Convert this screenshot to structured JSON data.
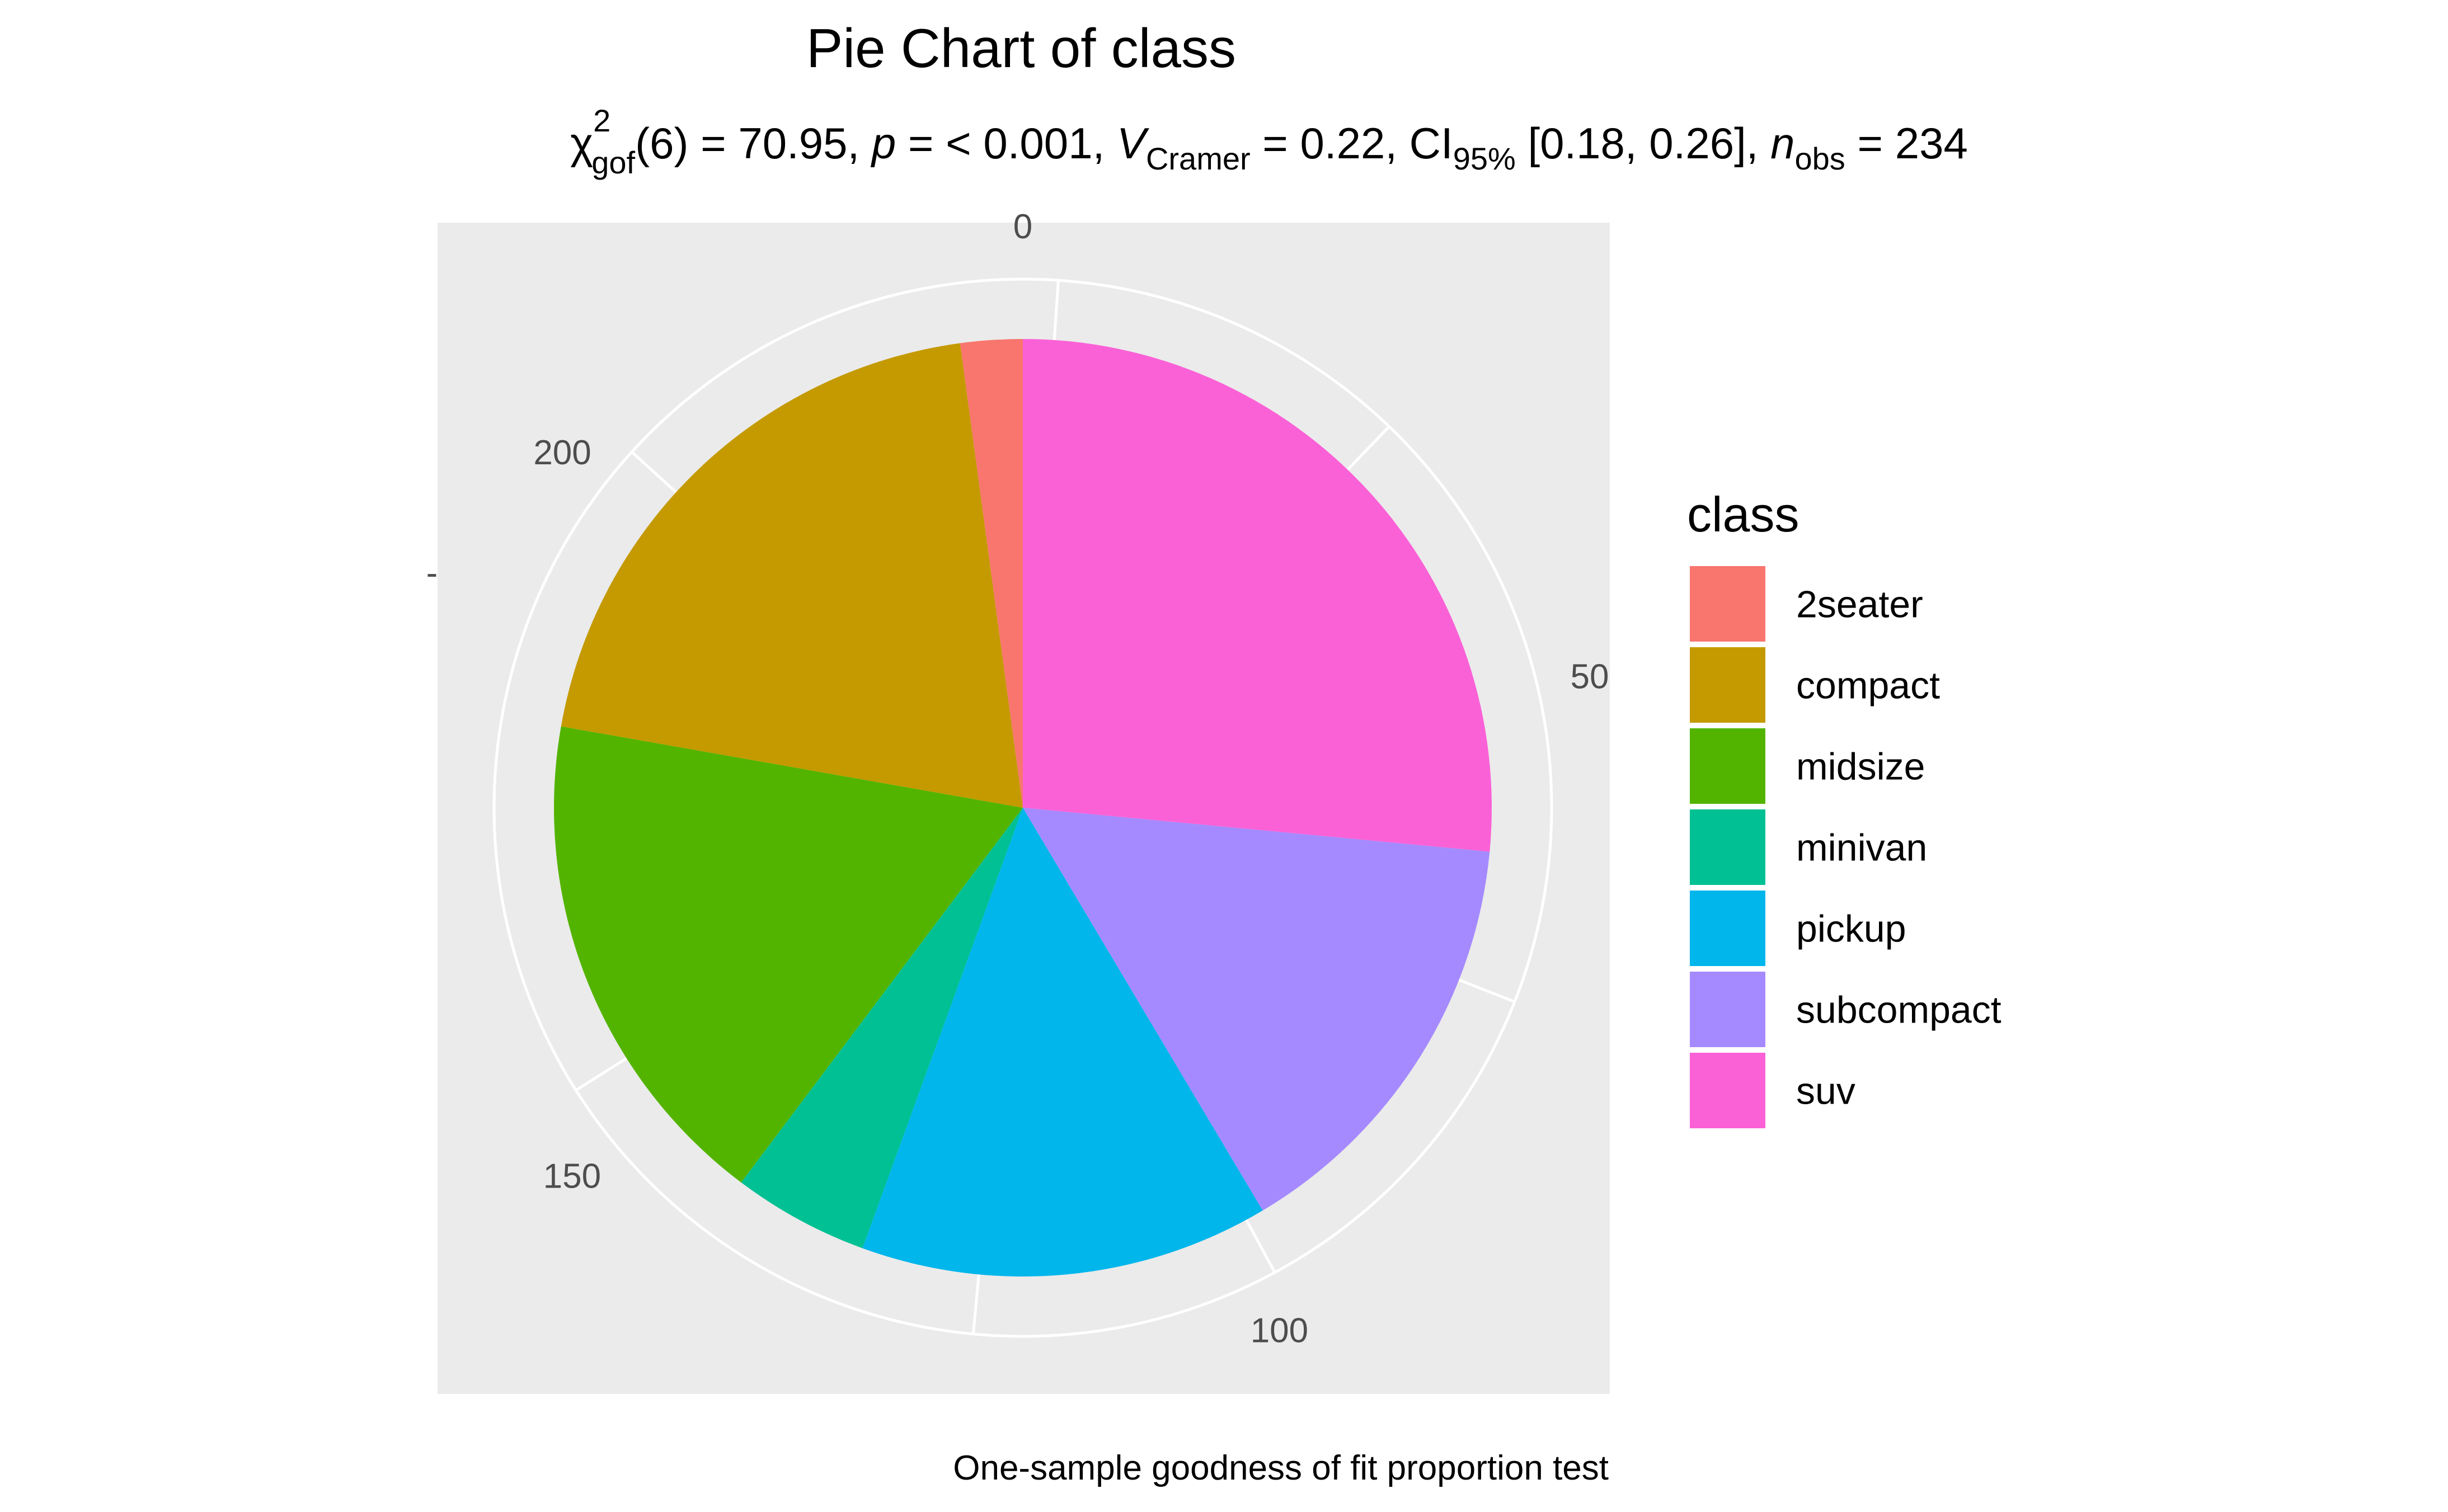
{
  "chart_data": {
    "type": "pie",
    "title": "Pie Chart of class",
    "subtitle": {
      "chi_sym": "χ",
      "chi_sub": "gof",
      "chi_sup": "2",
      "df_part": "(6) = 70.95, ",
      "p_sym": "p",
      "p_part": " = < 0.001, ",
      "v_sym": "V",
      "v_sub": "Cramer",
      "v_part": " = 0.22, CI",
      "ci_sub": "95%",
      "ci_part": " [0.18, 0.26], ",
      "n_sym": "n",
      "n_sub": "obs",
      "n_part": " = 234"
    },
    "caption": "One-sample goodness of fit proportion test",
    "total": 234,
    "radial_ticks": [
      0,
      50,
      100,
      150,
      200
    ],
    "left_tick": "-",
    "legend": {
      "title": "class",
      "placement": "right"
    },
    "categories": [
      "2seater",
      "compact",
      "midsize",
      "minivan",
      "pickup",
      "subcompact",
      "suv"
    ],
    "values": [
      5,
      47,
      41,
      11,
      33,
      35,
      62
    ],
    "colors": [
      "#F8766D",
      "#C49A00",
      "#53B400",
      "#00C094",
      "#00B6EB",
      "#A58AFF",
      "#FB61D7"
    ],
    "panel_background": "#EBEBEB",
    "grid_color": "#FFFFFF",
    "tick_color": "#4D4D4D"
  }
}
